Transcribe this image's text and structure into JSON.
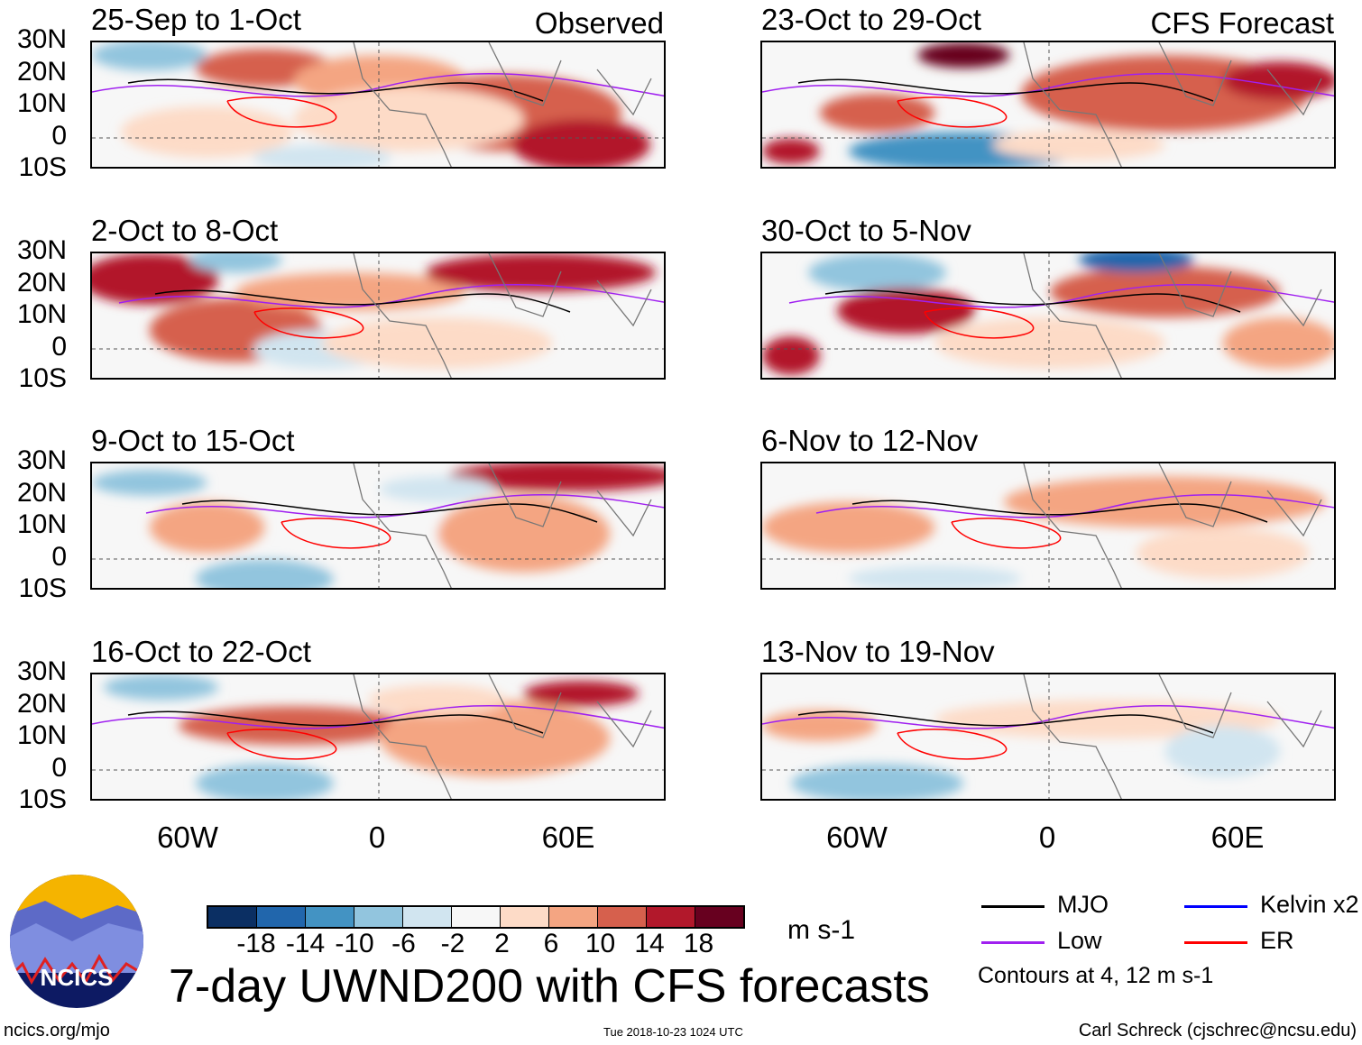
{
  "header": {
    "observed_label": "Observed",
    "forecast_label": "CFS Forecast"
  },
  "panels": {
    "left": [
      "25-Sep to 1-Oct",
      "2-Oct to 8-Oct",
      "9-Oct to 15-Oct",
      "16-Oct to 22-Oct"
    ],
    "right": [
      "23-Oct to 29-Oct",
      "30-Oct to 5-Nov",
      "6-Nov to 12-Nov",
      "13-Nov to 19-Nov"
    ]
  },
  "lat_labels": [
    "30N",
    "20N",
    "10N",
    "0",
    "10S"
  ],
  "lon_labels": [
    "60W",
    "0",
    "60E"
  ],
  "colorbar": {
    "colors": [
      "#0b2f63",
      "#2166ac",
      "#4393c3",
      "#92c5de",
      "#d1e5f0",
      "#f7f7f7",
      "#fddbc7",
      "#f4a582",
      "#d6604d",
      "#b2182b",
      "#67001f"
    ],
    "ticks": [
      "-18",
      "-14",
      "-10",
      "-6",
      "-2",
      "2",
      "6",
      "10",
      "14",
      "18"
    ],
    "units": "m s-1"
  },
  "legend": {
    "items": [
      {
        "label": "MJO",
        "color": "#000000"
      },
      {
        "label": "Kelvin x2",
        "color": "#0000ff"
      },
      {
        "label": "Low",
        "color": "#a020f0"
      },
      {
        "label": "ER",
        "color": "#ff0000"
      }
    ],
    "contours_note": "Contours at 4, 12 m s-1"
  },
  "title": "7-day UWND200 with CFS forecasts",
  "logo_text": "NCICS",
  "footer": {
    "url": "ncics.org/mjo",
    "timestamp": "Tue 2018-10-23 1024 UTC",
    "author": "Carl Schreck (cjschrec@ncsu.edu)"
  }
}
